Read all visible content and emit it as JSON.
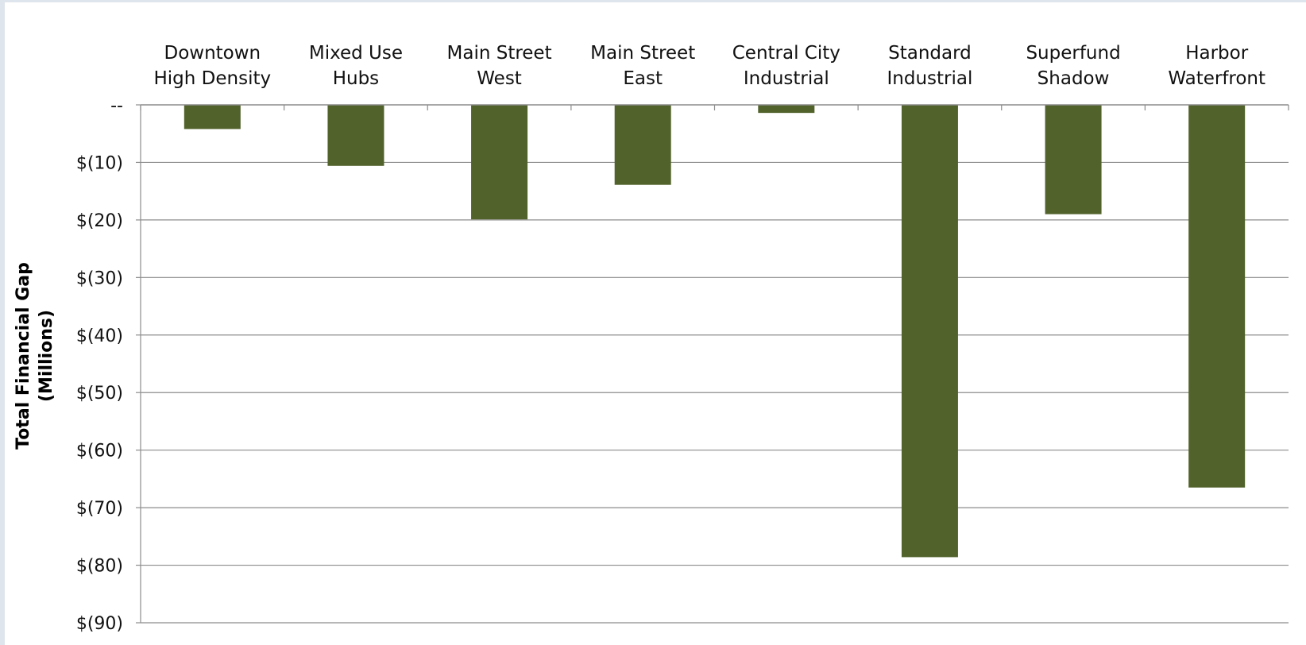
{
  "chart_data": {
    "type": "bar",
    "title": "",
    "ylabel": "Total Financial Gap",
    "ylabel_unit": "(Millions)",
    "xlabel": "",
    "categories": [
      [
        "Downtown",
        "High Density"
      ],
      [
        "Mixed Use",
        "Hubs"
      ],
      [
        "Main Street",
        "West"
      ],
      [
        "Main Street",
        "East"
      ],
      [
        "Central City",
        "Industrial"
      ],
      [
        "Standard",
        "Industrial"
      ],
      [
        "Superfund",
        "Shadow"
      ],
      [
        "Harbor",
        "Waterfront"
      ]
    ],
    "values": [
      -4.2,
      -10.6,
      -19.9,
      -13.9,
      -1.4,
      -78.6,
      -19.0,
      -66.5
    ],
    "ylim": [
      -90,
      0
    ],
    "yticks": [
      0,
      -10,
      -20,
      -30,
      -40,
      -50,
      -60,
      -70,
      -80,
      -90
    ],
    "ytick_labels": [
      "--",
      "$(10)",
      "$(20)",
      "$(30)",
      "$(40)",
      "$(50)",
      "$(60)",
      "$(70)",
      "$(80)",
      "$(90)"
    ],
    "category_axis_position": "top",
    "grid": true,
    "legend": "none",
    "colors": {
      "bar": "#51622b",
      "gridline": "#8c8c8c",
      "axis": "#8c8c8c",
      "page_background": "#dfe5ec",
      "panel_background": "#ffffff"
    }
  }
}
